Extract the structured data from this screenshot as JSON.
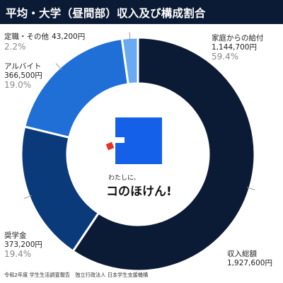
{
  "header": {
    "title": "平均・大学（昼間部）収入及び構成割合"
  },
  "chart_data": {
    "type": "pie",
    "title": "平均・大学（昼間部）収入及び構成割合",
    "series": [
      {
        "name": "家庭からの給付",
        "amount": "1,144,700円",
        "pct_label": "59.4%",
        "value": 59.4,
        "color": "#0c1b35"
      },
      {
        "name": "奨学金",
        "amount": "373,200円",
        "pct_label": "19.4%",
        "value": 19.4,
        "color": "#0a3a7a"
      },
      {
        "name": "アルバイト",
        "amount": "366,500円",
        "pct_label": "19.0%",
        "value": 19.0,
        "color": "#1f6fd6"
      },
      {
        "name": "定職・その他",
        "amount": "43,200円",
        "pct_label": "2.2%",
        "value": 2.2,
        "color": "#6aaaf2"
      }
    ],
    "total": {
      "label": "収入総額",
      "amount": "1,927,600円"
    }
  },
  "logo": {
    "small_text": "わたしに、",
    "big_text": "コのほけん!"
  },
  "source": "令和2年度 学生生活調査報告　独立行政法人 日本学生支援機構"
}
